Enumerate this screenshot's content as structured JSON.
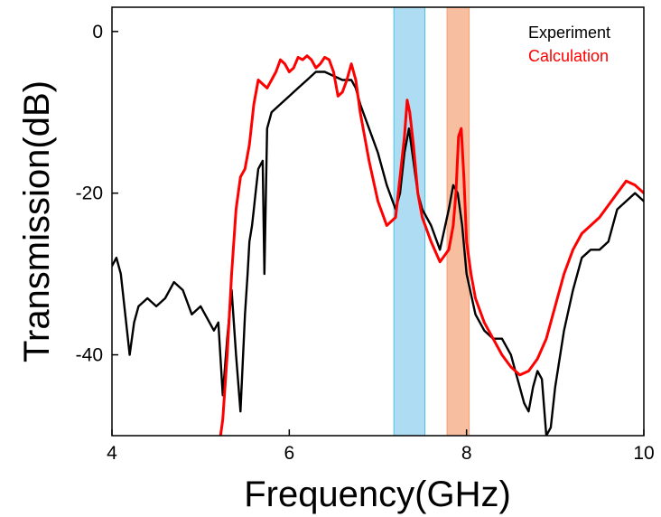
{
  "chart_data": {
    "type": "line",
    "title": "",
    "xlabel": "Frequency(GHz)",
    "ylabel": "Transmission(dB)",
    "xlim": [
      4,
      10
    ],
    "ylim": [
      -50,
      3
    ],
    "xticks": [
      4,
      6,
      8,
      10
    ],
    "yticks": [
      0,
      -20,
      -40
    ],
    "xtick_labels": [
      "4",
      "6",
      "8",
      "10"
    ],
    "ytick_labels": [
      "0",
      "-20",
      "-40"
    ],
    "grid": false,
    "legend_position": "top-right",
    "bands": [
      {
        "x0": 7.18,
        "x1": 7.53,
        "color": "#aedcf2",
        "edge": "#45c6ec"
      },
      {
        "x0": 7.78,
        "x1": 8.03,
        "color": "#f7bfa0",
        "edge": "#f2a075"
      }
    ],
    "series": [
      {
        "name": "Experiment",
        "color": "#000000",
        "x": [
          4.0,
          4.05,
          4.1,
          4.15,
          4.2,
          4.25,
          4.3,
          4.4,
          4.5,
          4.6,
          4.7,
          4.8,
          4.9,
          5.0,
          5.1,
          5.15,
          5.2,
          5.25,
          5.3,
          5.35,
          5.4,
          5.45,
          5.5,
          5.53,
          5.55,
          5.58,
          5.6,
          5.62,
          5.65,
          5.7,
          5.72,
          5.75,
          5.8,
          5.9,
          6.0,
          6.1,
          6.2,
          6.3,
          6.4,
          6.5,
          6.6,
          6.7,
          6.75,
          6.8,
          6.9,
          7.0,
          7.1,
          7.2,
          7.25,
          7.3,
          7.35,
          7.4,
          7.45,
          7.5,
          7.6,
          7.7,
          7.8,
          7.85,
          7.9,
          7.95,
          8.0,
          8.1,
          8.2,
          8.3,
          8.4,
          8.5,
          8.55,
          8.6,
          8.65,
          8.7,
          8.75,
          8.8,
          8.85,
          8.9,
          8.95,
          9.0,
          9.1,
          9.2,
          9.3,
          9.4,
          9.5,
          9.6,
          9.7,
          9.8,
          9.9,
          10.0
        ],
        "y": [
          -29.0,
          -28.0,
          -30.0,
          -35.0,
          -40.0,
          -36.0,
          -34.0,
          -33.0,
          -34.0,
          -33.0,
          -31.0,
          -32.0,
          -35.0,
          -34.0,
          -36.0,
          -37.0,
          -36.0,
          -45.0,
          -38.0,
          -32.0,
          -40.0,
          -47.0,
          -35.0,
          -30.0,
          -26.0,
          -24.0,
          -22.0,
          -20.0,
          -17.0,
          -16.0,
          -30.0,
          -12.0,
          -10.0,
          -9.0,
          -8.0,
          -7.0,
          -6.0,
          -5.0,
          -5.0,
          -5.5,
          -6.0,
          -6.0,
          -7.0,
          -9.0,
          -12.0,
          -15.0,
          -19.0,
          -22.0,
          -20.0,
          -15.0,
          -12.0,
          -16.0,
          -20.0,
          -22.0,
          -24.0,
          -27.0,
          -22.0,
          -19.0,
          -20.0,
          -24.0,
          -30.0,
          -35.0,
          -37.0,
          -38.0,
          -38.0,
          -40.0,
          -42.0,
          -44.0,
          -46.0,
          -47.0,
          -44.0,
          -42.0,
          -43.0,
          -50.0,
          -49.0,
          -44.0,
          -37.0,
          -32.0,
          -28.0,
          -27.0,
          -27.0,
          -26.0,
          -22.0,
          -21.0,
          -20.0,
          -21.0
        ]
      },
      {
        "name": "Calculation",
        "color": "#ff0000",
        "x": [
          5.2,
          5.25,
          5.3,
          5.35,
          5.4,
          5.45,
          5.5,
          5.55,
          5.6,
          5.65,
          5.7,
          5.75,
          5.8,
          5.85,
          5.9,
          5.95,
          6.0,
          6.05,
          6.1,
          6.15,
          6.2,
          6.25,
          6.3,
          6.35,
          6.4,
          6.45,
          6.5,
          6.55,
          6.6,
          6.65,
          6.7,
          6.75,
          6.8,
          6.9,
          7.0,
          7.1,
          7.2,
          7.25,
          7.3,
          7.33,
          7.36,
          7.4,
          7.45,
          7.5,
          7.6,
          7.7,
          7.8,
          7.85,
          7.88,
          7.91,
          7.94,
          7.97,
          8.0,
          8.05,
          8.1,
          8.2,
          8.3,
          8.4,
          8.5,
          8.6,
          8.7,
          8.8,
          8.9,
          9.0,
          9.1,
          9.2,
          9.3,
          9.4,
          9.5,
          9.6,
          9.7,
          9.8,
          9.9,
          10.0
        ],
        "y": [
          -52.0,
          -48.0,
          -40.0,
          -30.0,
          -22.0,
          -18.0,
          -17.0,
          -14.0,
          -9.0,
          -6.0,
          -6.5,
          -7.0,
          -6.0,
          -5.0,
          -3.5,
          -4.0,
          -5.0,
          -4.5,
          -3.2,
          -3.5,
          -3.0,
          -3.5,
          -4.5,
          -4.0,
          -3.2,
          -3.5,
          -5.0,
          -8.0,
          -7.5,
          -6.0,
          -4.0,
          -6.0,
          -10.0,
          -16.0,
          -21.0,
          -24.0,
          -23.0,
          -18.0,
          -13.0,
          -8.5,
          -10.0,
          -14.0,
          -20.0,
          -23.0,
          -26.0,
          -28.5,
          -27.0,
          -24.0,
          -20.0,
          -13.0,
          -12.0,
          -18.0,
          -26.0,
          -30.0,
          -33.0,
          -36.0,
          -38.0,
          -40.0,
          -41.5,
          -42.5,
          -42.0,
          -40.5,
          -38.0,
          -34.0,
          -30.0,
          -27.0,
          -25.0,
          -24.0,
          -23.0,
          -21.5,
          -20.0,
          -18.5,
          -19.0,
          -20.0
        ]
      }
    ]
  }
}
